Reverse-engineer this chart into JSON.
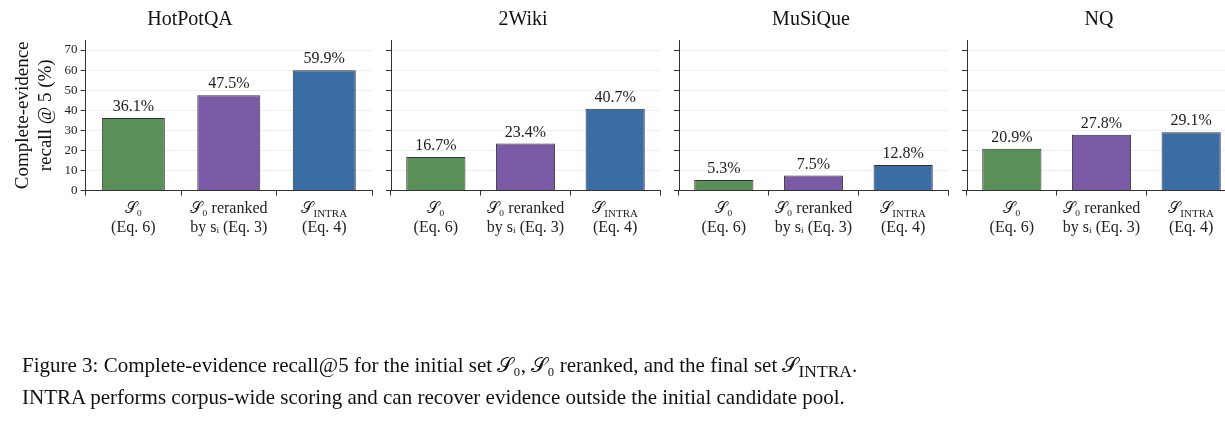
{
  "chart_data": [
    {
      "type": "bar",
      "title": "HotPotQA",
      "ylabel": "Complete-evidence\nrecall @ 5 (%)",
      "categories": [
        "𝒮₀\n(Eq. 6)",
        "𝒮₀ reranked\nby sᵢ (Eq. 3)",
        "𝒮$_{INTRA}$\n(Eq. 4)"
      ],
      "values": [
        36.1,
        47.5,
        59.9
      ],
      "colors": [
        "#5a8f58",
        "#7a59a5",
        "#3a6da4"
      ],
      "value_labels": [
        "36.1%",
        "47.5%",
        "59.9%"
      ],
      "ylim": [
        0,
        75
      ],
      "yticks": [
        0,
        10,
        20,
        30,
        40,
        50,
        60,
        70
      ],
      "grid": "y",
      "legend": false,
      "annotations": [
        "Figure 3: Complete-evidence recall@5 for the initial set 𝒮₀, 𝒮₀ reranked, and the final set 𝒮$_{INTRA}$.\nINTRA performs corpus-wide scoring and can recover evidence outside the initial candidate pool."
      ]
    },
    {
      "type": "bar",
      "title": "2Wiki",
      "categories": [
        "𝒮₀\n(Eq. 6)",
        "𝒮₀ reranked\nby sᵢ (Eq. 3)",
        "𝒮$_{INTRA}$\n(Eq. 4)"
      ],
      "values": [
        16.7,
        23.4,
        40.7
      ],
      "colors": [
        "#5a8f58",
        "#7a59a5",
        "#3a6da4"
      ],
      "value_labels": [
        "16.7%",
        "23.4%",
        "40.7%"
      ],
      "ylim": [
        0,
        75
      ],
      "yticks": [
        0,
        10,
        20,
        30,
        40,
        50,
        60,
        70
      ],
      "grid": "y",
      "legend": false,
      "tick_labels": "x"
    },
    {
      "type": "bar",
      "title": "MuSiQue",
      "categories": [
        "𝒮₀\n(Eq. 6)",
        "𝒮₀ reranked\nby sᵢ (Eq. 3)",
        "𝒮$_{INTRA}$\n(Eq. 4)"
      ],
      "values": [
        5.3,
        7.5,
        12.8
      ],
      "colors": [
        "#5a8f58",
        "#7a59a5",
        "#3a6da4"
      ],
      "value_labels": [
        "5.3%",
        "7.5%",
        "12.8%"
      ],
      "ylim": [
        0,
        75
      ],
      "yticks": [
        0,
        10,
        20,
        30,
        40,
        50,
        60,
        70
      ],
      "grid": "y",
      "legend": false,
      "tick_labels": "x"
    },
    {
      "type": "bar",
      "title": "NQ",
      "categories": [
        "𝒮₀\n(Eq. 6)",
        "𝒮₀ reranked\nby sᵢ (Eq. 3)",
        "𝒮$_{INTRA}$\n(Eq. 4)"
      ],
      "values": [
        20.9,
        27.8,
        29.1
      ],
      "colors": [
        "#5a8f58",
        "#7a59a5",
        "#3a6da4"
      ],
      "value_labels": [
        "20.9%",
        "27.8%",
        "29.1%"
      ],
      "ylim": [
        0,
        75
      ],
      "yticks": [
        0,
        10,
        20,
        30,
        40,
        50,
        60,
        70
      ],
      "grid": "y",
      "legend": false,
      "tick_labels": "x"
    }
  ]
}
